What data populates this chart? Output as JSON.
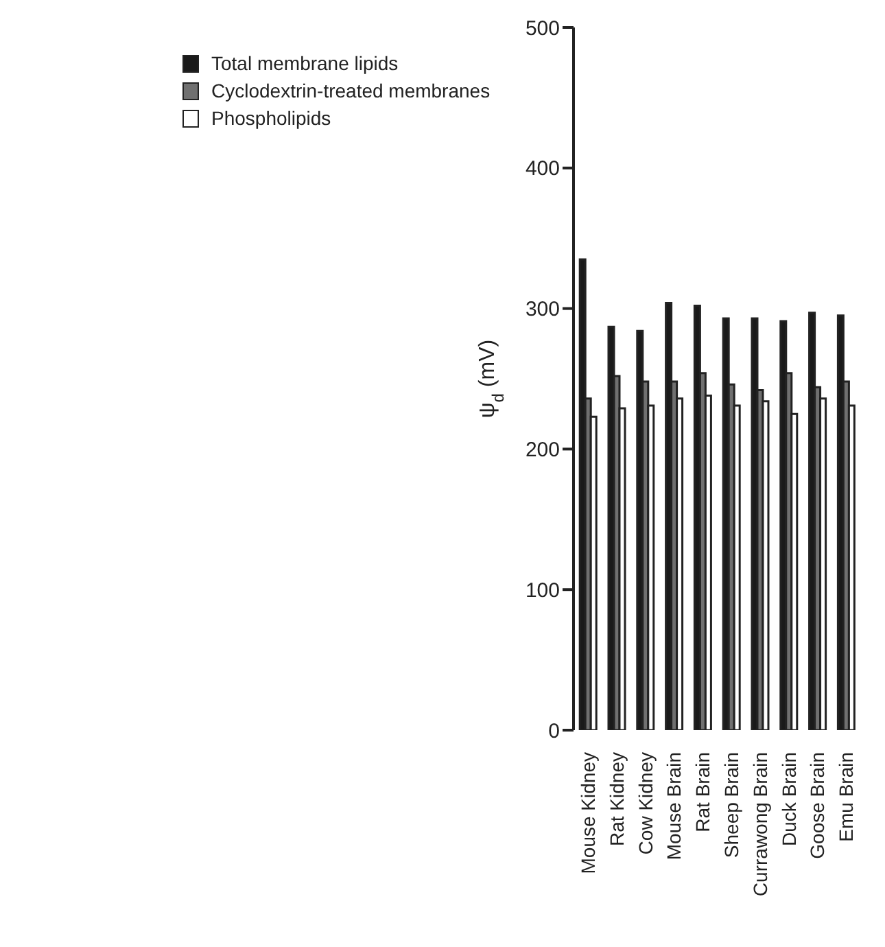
{
  "chart_data": {
    "type": "bar",
    "ylabel": "ψ$_{d}$ (mV)",
    "categories": [
      "Mouse Kidney",
      "Rat Kidney",
      "Cow Kidney",
      "Mouse Brain",
      "Rat Brain",
      "Sheep Brain",
      "Currawong Brain",
      "Duck Brain",
      "Goose Brain",
      "Emu Brain"
    ],
    "series": [
      {
        "name": "Total membrane lipids",
        "color": "#1a1a1a",
        "values": [
          335,
          287,
          284,
          304,
          302,
          293,
          293,
          291,
          297,
          295
        ]
      },
      {
        "name": "Cyclodextrin-treated membranes",
        "color": "#707070",
        "values": [
          236,
          252,
          248,
          248,
          254,
          246,
          242,
          254,
          244,
          248
        ]
      },
      {
        "name": "Phospholipids",
        "color": "#ffffff",
        "values": [
          223,
          229,
          231,
          236,
          238,
          231,
          234,
          225,
          236,
          231
        ]
      }
    ],
    "ylim": [
      0,
      500
    ],
    "yticks": [
      0,
      100,
      200,
      300,
      400,
      500
    ],
    "grid": false,
    "legend": "top left"
  }
}
